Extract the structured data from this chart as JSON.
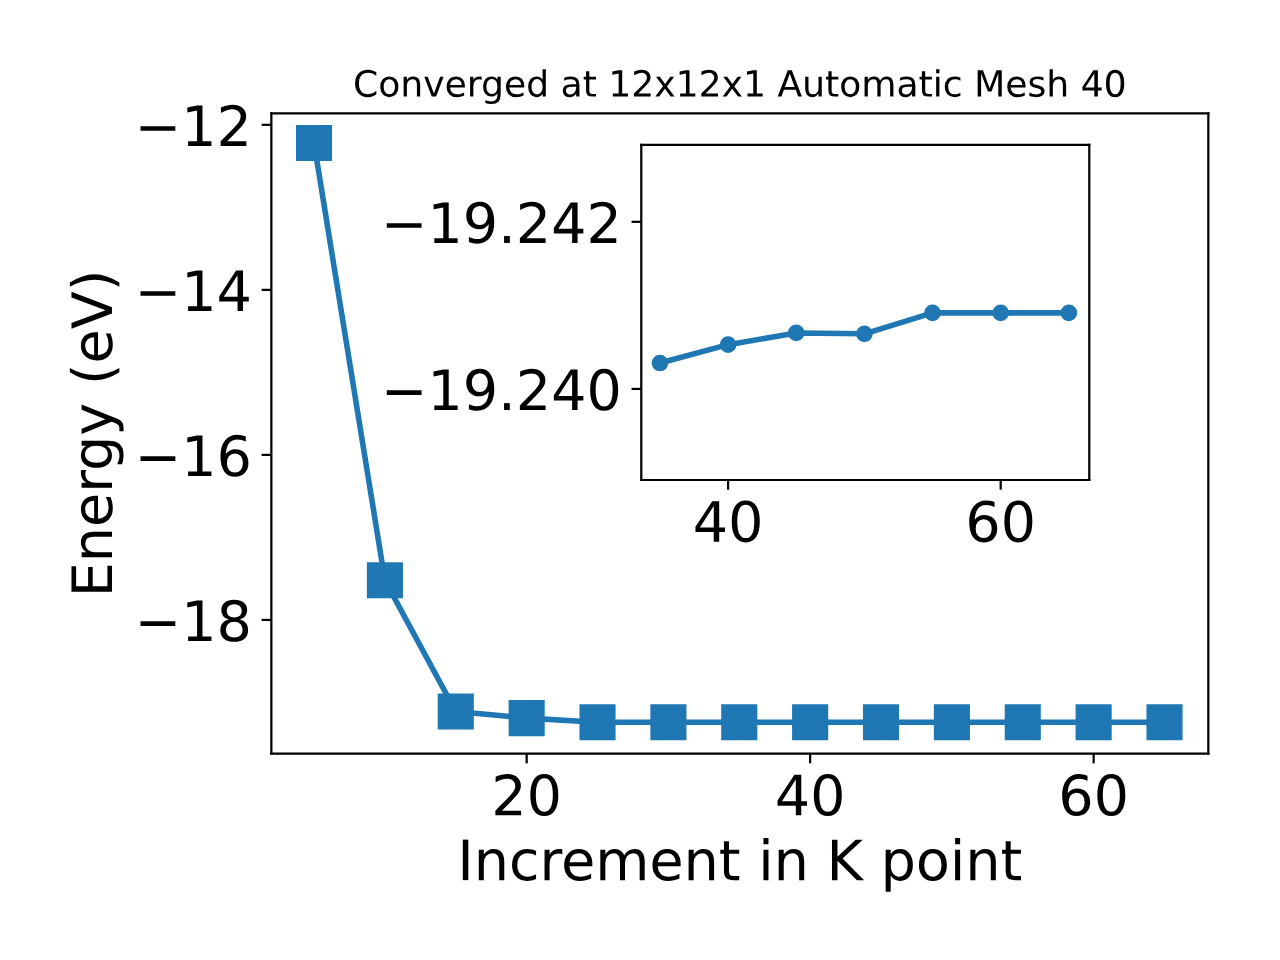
{
  "chart_data": [
    {
      "type": "line",
      "title": "Converged at 12x12x1 Automatic Mesh 40",
      "xlabel": "Increment in K point",
      "ylabel": "Energy (eV)",
      "marker": "square",
      "line_style": "solid",
      "grid": false,
      "x": [
        5,
        10,
        15,
        20,
        25,
        30,
        35,
        40,
        45,
        50,
        55,
        60,
        65
      ],
      "series": [
        {
          "color": "#1f77b4",
          "values": [
            -12.22,
            -17.52,
            -19.11,
            -19.19,
            -19.24,
            -19.24,
            -19.24,
            -19.24,
            -19.24,
            -19.24,
            -19.24,
            -19.24,
            -19.24
          ]
        }
      ],
      "xlim": [
        1.99,
        68.09
      ],
      "ylim": [
        -19.62,
        -11.86
      ],
      "xticks": [
        20,
        40,
        60
      ],
      "yticks": [
        {
          "value": -18,
          "label": "−18"
        },
        {
          "value": -16,
          "label": "−16"
        },
        {
          "value": -14,
          "label": "−14"
        },
        {
          "value": -12,
          "label": "−12"
        }
      ]
    },
    {
      "type": "line",
      "marker": "circle",
      "line_style": "solid",
      "grid": false,
      "x": [
        35,
        40,
        45,
        50,
        55,
        60,
        65
      ],
      "series": [
        {
          "color": "#1f77b4",
          "values": [
            -19.24031,
            -19.24053,
            -19.24067,
            -19.24066,
            -19.24091,
            -19.24091,
            -19.24091
          ]
        }
      ],
      "xlim": [
        33.63,
        66.5
      ],
      "ylim": [
        -19.23891,
        -19.24292
      ],
      "xticks": [
        40,
        60
      ],
      "yticks": [
        {
          "value": -19.242,
          "label": "−19.242"
        },
        {
          "value": -19.24,
          "label": "−19.240"
        }
      ]
    }
  ]
}
